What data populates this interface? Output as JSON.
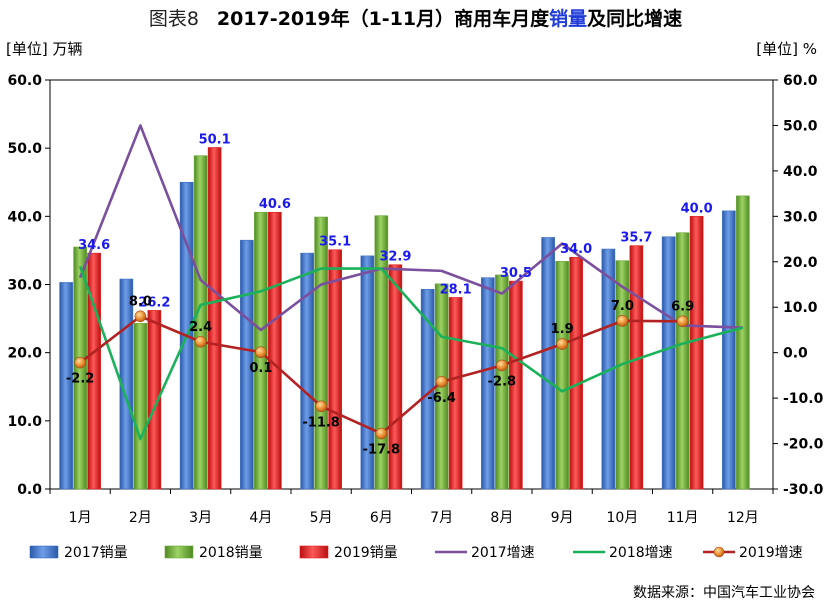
{
  "header": {
    "prefix": "图表8",
    "title_main": "2017-2019年（1-11月）商用车月度",
    "title_highlight": "销量",
    "title_end": "及同比增速"
  },
  "units": {
    "left": "[单位] 万辆",
    "right": "[单位] %"
  },
  "source": "数据来源：中国汽车工业协会",
  "chart_data": {
    "type": "bar",
    "categories": [
      "1月",
      "2月",
      "3月",
      "4月",
      "5月",
      "6月",
      "7月",
      "8月",
      "9月",
      "10月",
      "11月",
      "12月"
    ],
    "y_left": {
      "lim": [
        0,
        60
      ],
      "ticks": [
        "0.0",
        "10.0",
        "20.0",
        "30.0",
        "40.0",
        "50.0",
        "60.0"
      ]
    },
    "y_right": {
      "lim": [
        -30,
        60
      ],
      "ticks": [
        "-30.0",
        "-20.0",
        "-10.0",
        "0.0",
        "10.0",
        "20.0",
        "30.0",
        "40.0",
        "50.0",
        "60.0"
      ]
    },
    "bar_series": [
      {
        "name": "2017销量",
        "color": "#3d6fc4",
        "values": [
          30.3,
          30.8,
          45.0,
          36.5,
          34.6,
          34.2,
          29.3,
          31.0,
          36.9,
          35.2,
          37.0,
          40.8
        ]
      },
      {
        "name": "2018销量",
        "color": "#6ea83c",
        "values": [
          35.5,
          24.3,
          48.9,
          40.6,
          39.9,
          40.1,
          30.1,
          31.4,
          33.4,
          33.5,
          37.6,
          43.0
        ]
      },
      {
        "name": "2019销量",
        "color": "#e21e1e",
        "values": [
          34.6,
          26.2,
          50.1,
          40.6,
          35.1,
          32.9,
          28.1,
          30.5,
          34.0,
          35.7,
          40.0,
          null
        ]
      }
    ],
    "bar_labels": [
      34.6,
      26.2,
      50.1,
      40.6,
      35.1,
      32.9,
      28.1,
      30.5,
      34.0,
      35.7,
      40.0,
      null
    ],
    "line_series": [
      {
        "name": "2017增速",
        "color": "#7a4f9e",
        "values": [
          16.5,
          50.0,
          16.0,
          5.0,
          15.0,
          18.5,
          18.0,
          13.0,
          24.0,
          14.5,
          6.0,
          5.5
        ]
      },
      {
        "name": "2018增速",
        "color": "#1bb15a",
        "values": [
          19.0,
          -19.0,
          10.5,
          13.5,
          18.5,
          18.5,
          3.5,
          1.0,
          -8.5,
          -2.5,
          2.0,
          5.5
        ]
      },
      {
        "name": "2019增速",
        "color": "#b22222",
        "values": [
          -2.2,
          8.0,
          2.4,
          0.1,
          -11.8,
          -17.8,
          -6.4,
          -2.8,
          1.9,
          7.0,
          6.9,
          null
        ],
        "labels": [
          "-2.2",
          "8.0",
          "2.4",
          "0.1",
          "-11.8",
          "-17.8",
          "-6.4",
          "-2.8",
          "1.9",
          "7.0",
          "6.9",
          ""
        ]
      }
    ],
    "legend": [
      "2017销量",
      "2018销量",
      "2019销量",
      "2017增速",
      "2018增速",
      "2019增速"
    ],
    "legend_position": "bottom",
    "grid": false
  }
}
